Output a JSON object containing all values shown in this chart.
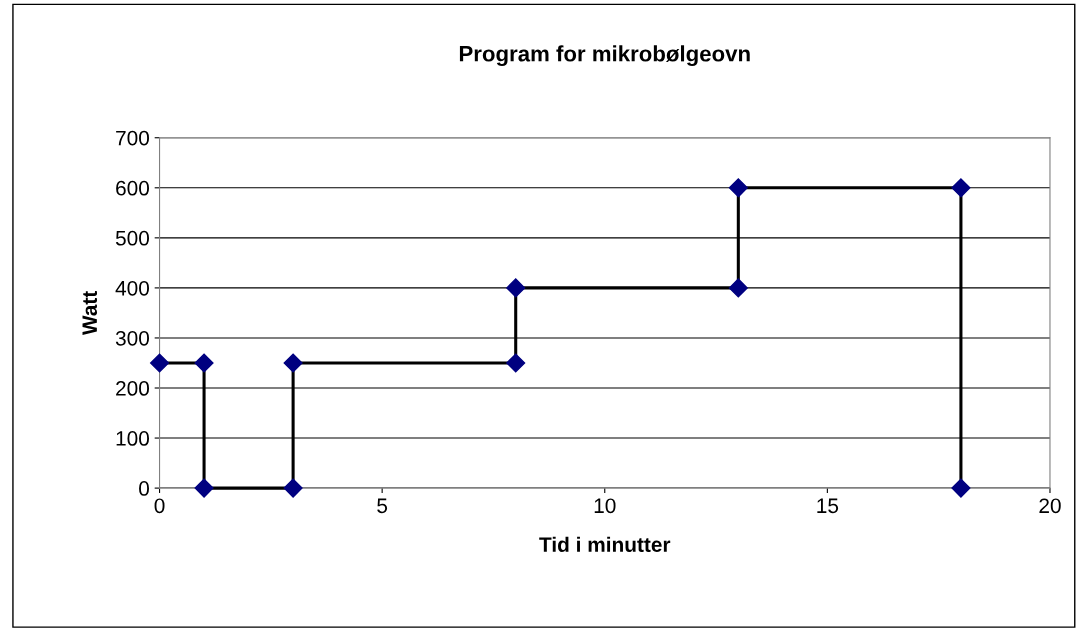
{
  "chart_data": {
    "type": "line",
    "title": "Program for mikrobølgeovn",
    "xlabel": "Tid i minutter",
    "ylabel": "Watt",
    "x": [
      0,
      1,
      1,
      3,
      3,
      8,
      8,
      13,
      13,
      18,
      18
    ],
    "series": [
      {
        "color": "#000000",
        "values": [
          250,
          250,
          0,
          0,
          250,
          250,
          400,
          400,
          600,
          600,
          0
        ]
      }
    ],
    "marker": "diamond",
    "line_style": "solid",
    "grid": "y",
    "xlim": [
      0,
      20
    ],
    "xticks": [
      0,
      5,
      10,
      15,
      20
    ],
    "ylim": [
      0,
      700
    ],
    "yticks": [
      0,
      100,
      200,
      300,
      400,
      500,
      600,
      700
    ]
  }
}
